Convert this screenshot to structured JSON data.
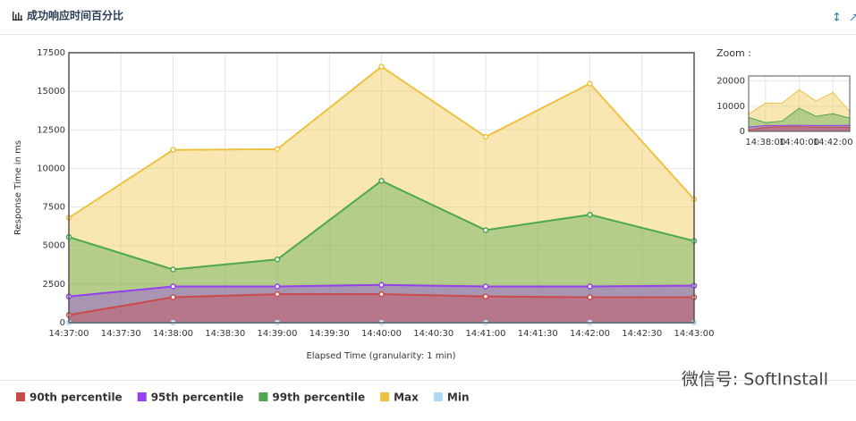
{
  "header": {
    "title": "成功响应时间百分比"
  },
  "watermark": "微信号: SoftInstall",
  "chart_data": {
    "type": "area",
    "y_label": "Response Time in ms",
    "x_label": "Elapsed Time (granularity: 1 min)",
    "x": [
      "14:37:00",
      "14:38:00",
      "14:39:00",
      "14:40:00",
      "14:41:00",
      "14:42:00",
      "14:43:00"
    ],
    "xlim": [
      "14:37:00",
      "14:43:00"
    ],
    "xticks": [
      "14:37:00",
      "14:37:30",
      "14:38:00",
      "14:38:30",
      "14:39:00",
      "14:39:30",
      "14:40:00",
      "14:40:30",
      "14:41:00",
      "14:41:30",
      "14:42:00",
      "14:42:30",
      "14:43:00"
    ],
    "ylim": [
      0,
      17500
    ],
    "yticks": [
      0,
      2500,
      5000,
      7500,
      10000,
      12500,
      15000,
      17500
    ],
    "grid": true,
    "legend": "bottom",
    "series": [
      {
        "name": "90th percentile",
        "color": "#cb4b4b",
        "values": [
          500,
          1650,
          1850,
          1850,
          1700,
          1650,
          1650
        ]
      },
      {
        "name": "95th percentile",
        "color": "#9440ed",
        "values": [
          1700,
          2350,
          2350,
          2450,
          2350,
          2350,
          2400
        ]
      },
      {
        "name": "99th percentile",
        "color": "#4da74d",
        "values": [
          5550,
          3450,
          4100,
          9200,
          6000,
          7000,
          5300
        ]
      },
      {
        "name": "Max",
        "color": "#edc240",
        "values": [
          6800,
          11200,
          11250,
          16600,
          12050,
          15500,
          8000
        ]
      },
      {
        "name": "Min",
        "color": "#afd8f8",
        "values": [
          0,
          0,
          0,
          0,
          0,
          0,
          0
        ]
      }
    ],
    "zoom": {
      "title": "Zoom :",
      "ylim": [
        0,
        22000
      ],
      "yticks": [
        0,
        10000,
        20000
      ],
      "xticks": [
        "14:38:00",
        "14:40:00",
        "14:42:00"
      ]
    }
  }
}
